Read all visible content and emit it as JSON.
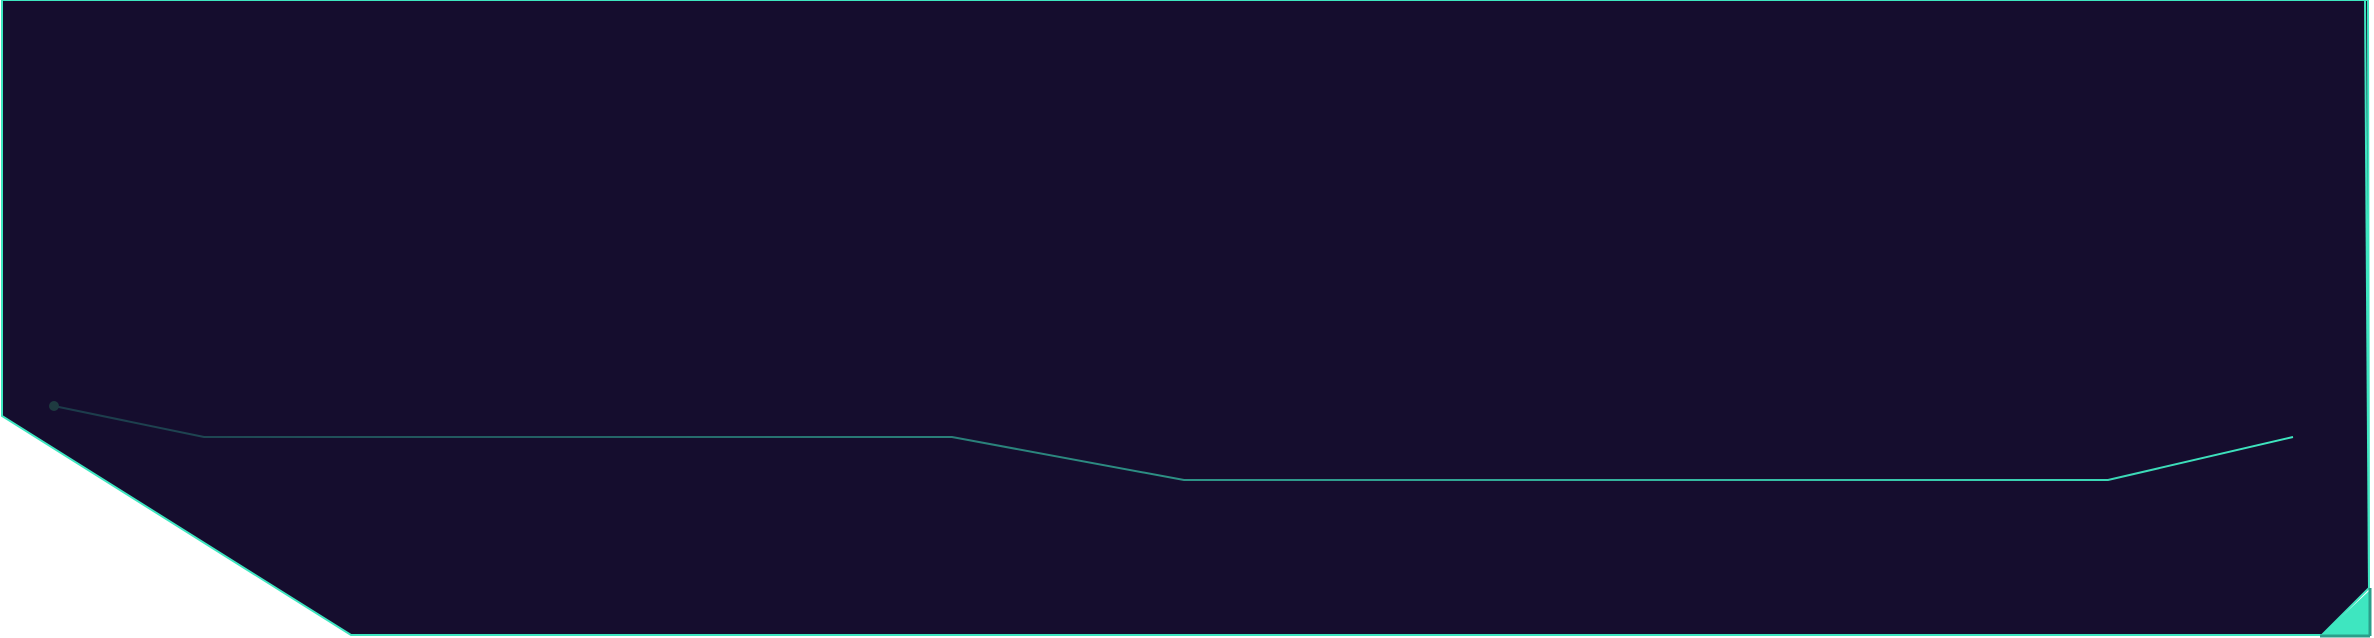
{
  "colors": {
    "panel_fill": "#150d2e",
    "accent": "#3ee6c0",
    "circuit_line_start": "#1c3a4a",
    "circuit_line_end": "#3ee6c0",
    "node_dot": "#1e3a40",
    "corner_tab": "#3ee6c0",
    "background": "#ffffff"
  },
  "decorations": {
    "frame": "angled-panel-frame",
    "circuit": "circuit-trace-line",
    "corner": "corner-accent-triangle"
  }
}
